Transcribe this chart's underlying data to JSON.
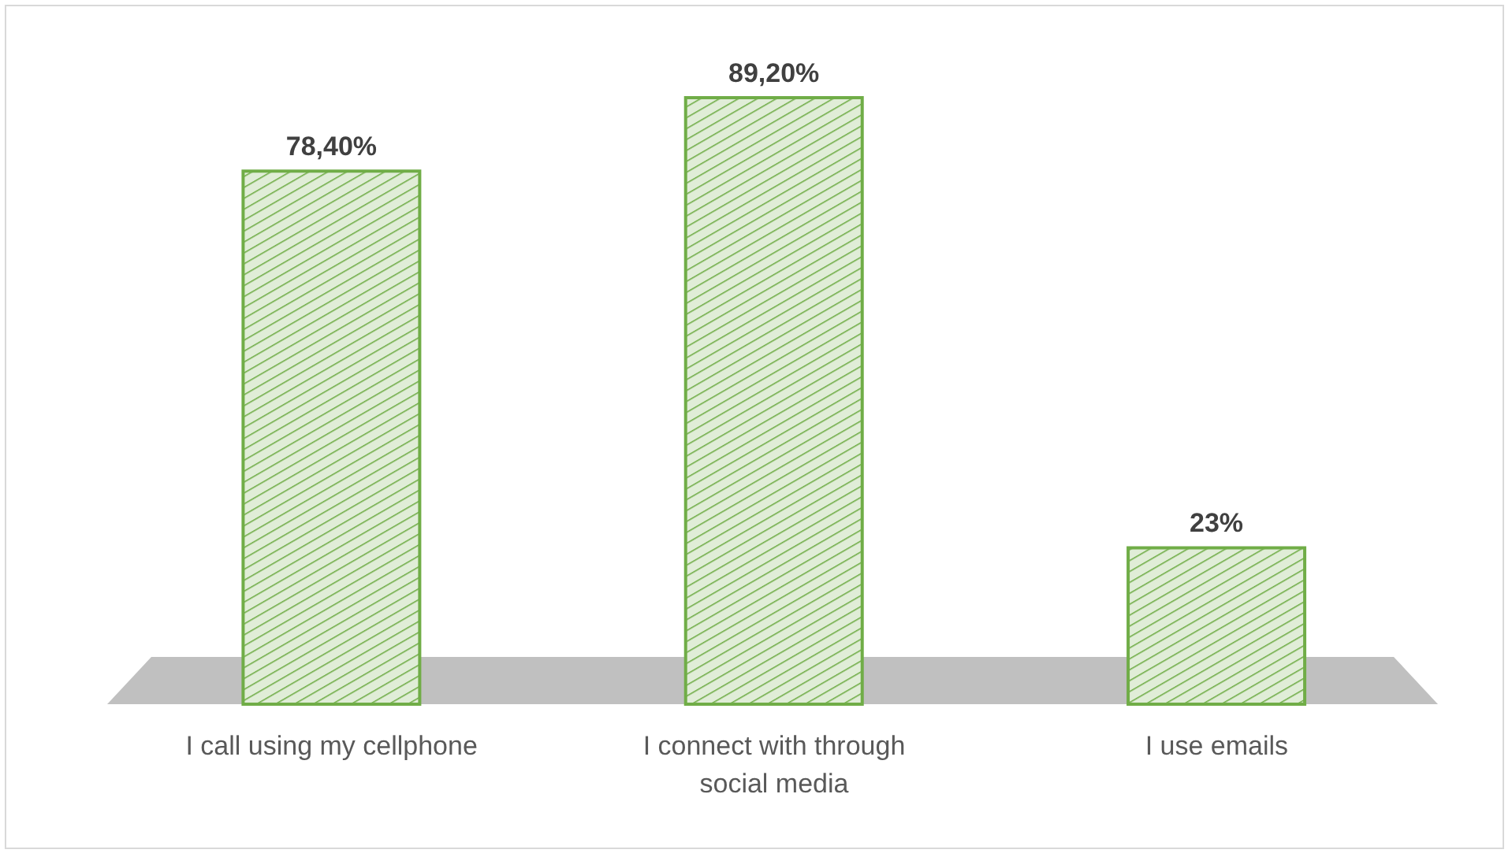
{
  "chart_data": {
    "type": "bar",
    "categories": [
      "I call using my cellphone",
      "I connect with through social media",
      "I use emails"
    ],
    "values": [
      78.4,
      89.2,
      23
    ],
    "value_labels": [
      "78,40%",
      "89,20%",
      "23%"
    ],
    "color": "#70ad47",
    "tick_labels": "x"
  }
}
